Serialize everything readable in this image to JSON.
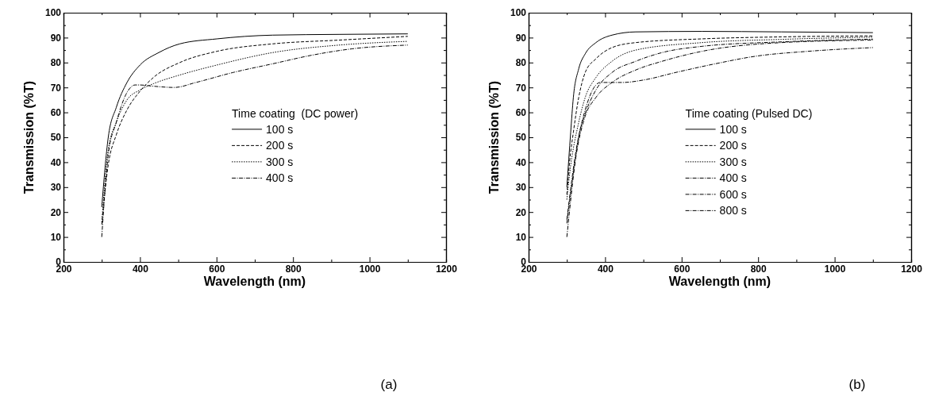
{
  "chart_data": [
    {
      "type": "line",
      "xlabel": "Wavelength (nm)",
      "ylabel": "Transmission (%T)",
      "legend_title": "Time coating  (DC power)",
      "legend": "right",
      "xlim": [
        200,
        1200
      ],
      "xticks": [
        200,
        400,
        600,
        800,
        1000,
        1200
      ],
      "ylim": [
        0,
        100
      ],
      "yticks": [
        0,
        10,
        20,
        30,
        40,
        50,
        60,
        70,
        80,
        90,
        100
      ],
      "grid": false,
      "marker": "none",
      "annotations": [
        "(a)"
      ],
      "series": [
        {
          "name": "100 s",
          "color": "#000000",
          "line_style": "solid",
          "x": [
            300,
            317,
            338,
            366,
            400,
            449,
            504,
            601,
            747,
            920,
            1100
          ],
          "values": [
            22,
            50,
            62,
            72,
            79,
            84,
            87.5,
            89.5,
            91,
            91.3,
            91.5
          ]
        },
        {
          "name": "200 s",
          "color": "#000000",
          "line_style": "dashed",
          "x": [
            300,
            317,
            338,
            366,
            400,
            435,
            504,
            601,
            747,
            920,
            1100
          ],
          "values": [
            15,
            39,
            51,
            61,
            68.5,
            74,
            80,
            84.5,
            87.5,
            89,
            90.5
          ]
        },
        {
          "name": "300 s",
          "color": "#000000",
          "line_style": "dotted",
          "x": [
            300,
            317,
            338,
            366,
            400,
            435,
            504,
            601,
            747,
            920,
            1100
          ],
          "values": [
            16,
            45,
            56,
            65,
            69,
            71.5,
            75,
            79,
            84,
            87,
            88.5
          ]
        },
        {
          "name": "400 s",
          "color": "#000000",
          "line_style": "dashdot",
          "x": [
            300,
            317,
            338,
            366,
            387,
            400,
            435,
            490,
            546,
            643,
            747,
            851,
            954,
            1100
          ],
          "values": [
            10,
            43,
            56,
            68,
            71,
            71,
            70.5,
            70,
            72,
            76,
            79.5,
            83,
            85.5,
            87
          ]
        }
      ]
    },
    {
      "type": "line",
      "xlabel": "Wavelength (nm)",
      "ylabel": "Transmission (%T)",
      "legend_title": "Time coating (Pulsed DC)",
      "legend": "right",
      "xlim": [
        200,
        1200
      ],
      "xticks": [
        200,
        400,
        600,
        800,
        1000,
        1200
      ],
      "ylim": [
        0,
        100
      ],
      "yticks": [
        0,
        10,
        20,
        30,
        40,
        50,
        60,
        70,
        80,
        90,
        100
      ],
      "grid": false,
      "marker": "none",
      "annotations": [
        "(b)"
      ],
      "series": [
        {
          "name": "100 s",
          "color": "#000000",
          "line_style": "solid",
          "x": [
            300,
            310,
            317,
            331,
            348,
            376,
            418,
            480,
            653,
            861,
            1100
          ],
          "values": [
            30,
            52,
            66,
            77.5,
            83.5,
            88,
            91,
            92.3,
            92.5,
            92.3,
            92
          ]
        },
        {
          "name": "200 s",
          "color": "#000000",
          "line_style": "dashed",
          "x": [
            300,
            307,
            317,
            331,
            348,
            376,
            418,
            480,
            653,
            861,
            1100
          ],
          "values": [
            27,
            40,
            52,
            66,
            76,
            81.5,
            86,
            88,
            89.5,
            90.3,
            90.7
          ]
        },
        {
          "name": "300 s",
          "color": "#000000",
          "line_style": "dotted",
          "x": [
            300,
            307,
            331,
            348,
            376,
            418,
            480,
            653,
            861,
            1100
          ],
          "values": [
            25,
            35,
            56,
            66,
            74,
            80.5,
            85,
            88,
            89.3,
            90.2
          ]
        },
        {
          "name": "400 s",
          "color": "#000000",
          "line_style": "dashdot",
          "x": [
            300,
            331,
            348,
            376,
            418,
            480,
            549,
            653,
            861,
            1100
          ],
          "values": [
            17,
            50.5,
            59.5,
            69,
            76,
            80.5,
            84,
            86.5,
            88.3,
            89.4
          ]
        },
        {
          "name": "600 s",
          "color": "#000000",
          "line_style": "dashdot",
          "x": [
            300,
            331,
            348,
            376,
            418,
            480,
            549,
            653,
            861,
            1100
          ],
          "values": [
            15.5,
            48.5,
            58.5,
            66,
            72,
            77,
            80.5,
            84.5,
            88,
            89
          ]
        },
        {
          "name": "800 s",
          "color": "#000000",
          "line_style": "dashdot",
          "x": [
            300,
            331,
            348,
            376,
            387,
            445,
            501,
            584,
            688,
            792,
            930,
            1100
          ],
          "values": [
            10,
            50,
            61,
            71,
            72,
            72,
            73,
            76,
            79.5,
            82.5,
            84.5,
            86
          ]
        }
      ]
    }
  ]
}
